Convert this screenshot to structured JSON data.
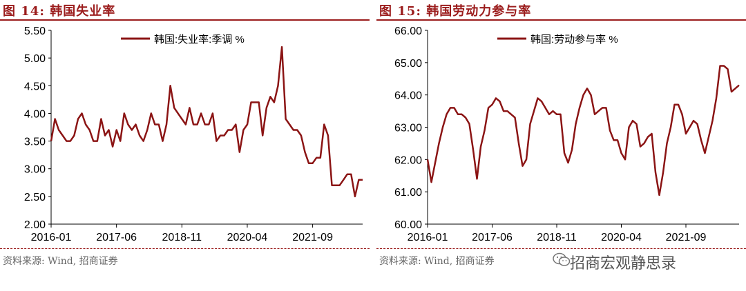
{
  "charts": [
    {
      "figure_title": "图 14:  韩国失业率",
      "source": "资料来源: Wind, 招商证券"
    },
    {
      "figure_title": "图 15:  韩国劳动力参与率",
      "source": "资料来源: Wind, 招商证券"
    }
  ],
  "watermark": "招商宏观静思录",
  "watermark_icon": "wechat-icon",
  "chart_data": [
    {
      "type": "line",
      "title": "",
      "ylim": [
        2.0,
        5.5
      ],
      "yticks": [
        "2.00",
        "2.50",
        "3.00",
        "3.50",
        "4.00",
        "4.50",
        "5.00",
        "5.50"
      ],
      "xticks": [
        "2016-01",
        "2017-06",
        "2018-11",
        "2020-04",
        "2021-09"
      ],
      "legend_position": "top-center",
      "grid": false,
      "color": "#8b1414",
      "series": [
        {
          "name": "韩国:失业率:季调 %",
          "values": [
            3.5,
            3.9,
            3.7,
            3.6,
            3.5,
            3.5,
            3.6,
            3.9,
            4.0,
            3.8,
            3.7,
            3.5,
            3.5,
            3.9,
            3.6,
            3.7,
            3.4,
            3.7,
            3.5,
            4.0,
            3.8,
            3.7,
            3.8,
            3.6,
            3.5,
            3.7,
            4.0,
            3.8,
            3.8,
            3.5,
            3.8,
            4.5,
            4.1,
            4.0,
            3.9,
            3.8,
            4.1,
            3.8,
            3.8,
            4.0,
            3.8,
            3.8,
            4.0,
            3.5,
            3.6,
            3.6,
            3.7,
            3.7,
            3.8,
            3.3,
            3.7,
            3.8,
            4.2,
            4.2,
            4.2,
            3.6,
            4.1,
            4.3,
            4.2,
            4.5,
            5.2,
            3.9,
            3.8,
            3.7,
            3.7,
            3.6,
            3.3,
            3.1,
            3.1,
            3.2,
            3.2,
            3.8,
            3.6,
            2.7,
            2.7,
            2.7,
            2.8,
            2.9,
            2.9,
            2.5,
            2.8,
            2.8
          ]
        }
      ]
    },
    {
      "type": "line",
      "title": "",
      "ylim": [
        60.0,
        66.0
      ],
      "yticks": [
        "60.00",
        "61.00",
        "62.00",
        "63.00",
        "64.00",
        "65.00",
        "66.00"
      ],
      "xticks": [
        "2016-01",
        "2017-06",
        "2018-11",
        "2020-04",
        "2021-09"
      ],
      "legend_position": "top-center",
      "grid": false,
      "color": "#8b1414",
      "series": [
        {
          "name": "韩国:劳动参与率 %",
          "values": [
            62.0,
            61.3,
            61.9,
            62.5,
            63.0,
            63.4,
            63.6,
            63.6,
            63.4,
            63.4,
            63.3,
            63.1,
            62.3,
            61.4,
            62.4,
            62.9,
            63.6,
            63.7,
            63.9,
            63.8,
            63.5,
            63.5,
            63.4,
            63.3,
            62.5,
            61.8,
            62.0,
            63.1,
            63.5,
            63.9,
            63.8,
            63.6,
            63.4,
            63.5,
            63.4,
            63.4,
            62.2,
            61.9,
            62.3,
            63.1,
            63.6,
            64.0,
            64.2,
            64.0,
            63.4,
            63.5,
            63.6,
            63.6,
            62.9,
            62.6,
            62.6,
            62.2,
            62.0,
            63.0,
            63.2,
            63.1,
            62.4,
            62.5,
            62.7,
            62.8,
            61.6,
            60.9,
            61.6,
            62.5,
            63.0,
            63.7,
            63.7,
            63.4,
            62.8,
            63.0,
            63.2,
            63.1,
            62.6,
            62.2,
            62.7,
            63.2,
            63.9,
            64.9,
            64.9,
            64.8,
            64.1,
            64.2,
            64.3
          ]
        }
      ]
    }
  ]
}
